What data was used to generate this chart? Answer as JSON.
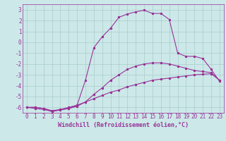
{
  "bg_color": "#cce8e8",
  "line_color": "#993399",
  "grid_color": "#aacccc",
  "xlabel": "Windchill (Refroidissement éolien,°C)",
  "xlabel_fontsize": 6.0,
  "tick_fontsize": 5.5,
  "ylim": [
    -6.5,
    3.5
  ],
  "xlim": [
    -0.5,
    23.5
  ],
  "yticks": [
    -6,
    -5,
    -4,
    -3,
    -2,
    -1,
    0,
    1,
    2,
    3
  ],
  "xticks": [
    0,
    1,
    2,
    3,
    4,
    5,
    6,
    7,
    8,
    9,
    10,
    11,
    12,
    13,
    14,
    15,
    16,
    17,
    18,
    19,
    20,
    21,
    22,
    23
  ],
  "line1_x": [
    0,
    1,
    2,
    3,
    4,
    5,
    6,
    7,
    8,
    9,
    10,
    11,
    12,
    13,
    14,
    15,
    16,
    17,
    18,
    19,
    20,
    21,
    22,
    23
  ],
  "line1_y": [
    -6.0,
    -6.1,
    -6.2,
    -6.35,
    -6.25,
    -6.1,
    -5.8,
    -5.5,
    -5.2,
    -4.9,
    -4.6,
    -4.4,
    -4.1,
    -3.9,
    -3.7,
    -3.5,
    -3.4,
    -3.3,
    -3.2,
    -3.1,
    -3.0,
    -2.95,
    -2.9,
    -3.5
  ],
  "line2_x": [
    0,
    1,
    2,
    3,
    4,
    5,
    6,
    7,
    8,
    9,
    10,
    11,
    12,
    13,
    14,
    15,
    16,
    17,
    18,
    19,
    20,
    21,
    22,
    23
  ],
  "line2_y": [
    -6.0,
    -6.0,
    -6.1,
    -6.3,
    -6.2,
    -6.1,
    -5.9,
    -5.5,
    -4.8,
    -4.2,
    -3.5,
    -3.0,
    -2.5,
    -2.2,
    -2.0,
    -1.9,
    -1.9,
    -2.0,
    -2.2,
    -2.4,
    -2.6,
    -2.7,
    -2.8,
    -3.5
  ],
  "line3_x": [
    0,
    1,
    2,
    3,
    4,
    5,
    6,
    7,
    8,
    9,
    10,
    11,
    12,
    13,
    14,
    15,
    16,
    17,
    18,
    19,
    20,
    21,
    22,
    23
  ],
  "line3_y": [
    -6.0,
    -6.0,
    -6.1,
    -6.4,
    -6.2,
    -6.0,
    -5.8,
    -3.5,
    -0.5,
    0.5,
    1.3,
    2.3,
    2.6,
    2.8,
    2.95,
    2.65,
    2.65,
    2.1,
    -1.0,
    -1.3,
    -1.3,
    -1.5,
    -2.5,
    -3.6
  ]
}
